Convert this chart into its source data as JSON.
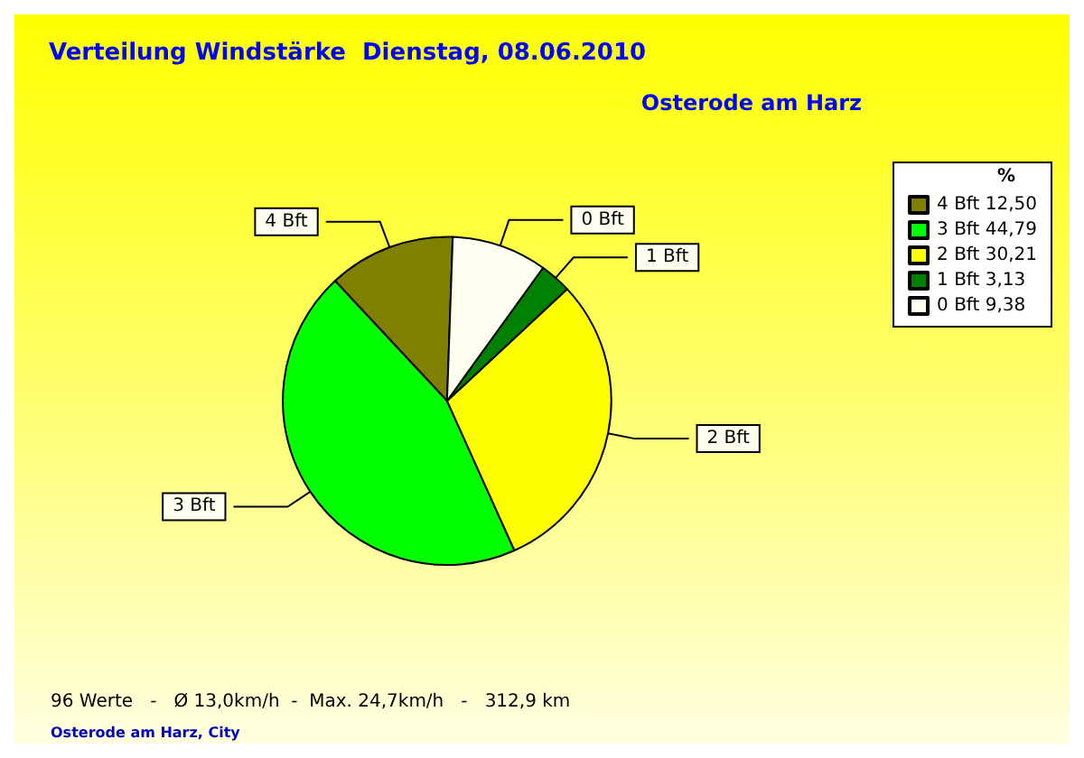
{
  "chart_data": {
    "type": "pie",
    "title": "Verteilung Windstärke  Dienstag, 08.06.2010",
    "subtitle": "Osterode am Harz",
    "categories": [
      "4 Bft",
      "3 Bft",
      "2 Bft",
      "1 Bft",
      "0 Bft"
    ],
    "values": [
      12.5,
      44.79,
      30.21,
      3.13,
      9.38
    ],
    "value_labels": [
      "12,50",
      "44,79",
      "30,21",
      "3,13",
      "9,38"
    ],
    "colors": [
      "#808000",
      "#00ff00",
      "#ffff00",
      "#008000",
      "#fffff0"
    ],
    "legend": "top right",
    "legend_title": "%",
    "annotations": [
      "96 Werte   -   Ø 13,0km/h  -  Max. 24,7km/h   -   312,9 km",
      "Osterode am Harz, City"
    ]
  }
}
